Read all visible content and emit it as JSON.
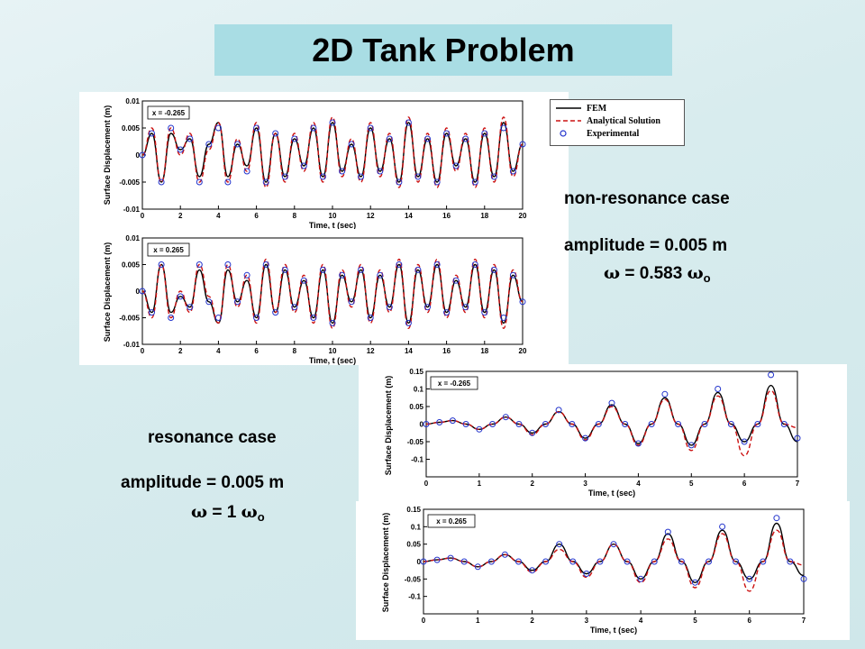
{
  "title": "2D Tank Problem",
  "legend": [
    {
      "label": "FEM",
      "style": "solid",
      "color": "#000000"
    },
    {
      "label": "Analytical Solution",
      "style": "dashed",
      "color": "#cc1111"
    },
    {
      "label": "Experimental",
      "style": "circle",
      "color": "#2233cc"
    }
  ],
  "non_resonance": {
    "case_label": "non-resonance case",
    "amplitude_label": "amplitude = 0.005 m",
    "omega_symbol": "ω",
    "omega_value": " = 0.583 ",
    "omega_ref": "ω",
    "omega_sub": "o"
  },
  "resonance": {
    "case_label": "resonance case",
    "amplitude_label": "amplitude = 0.005 m",
    "omega_symbol": "ω",
    "omega_value": " = 1 ",
    "omega_ref": "ω",
    "omega_sub": "o"
  },
  "chart_data": [
    {
      "type": "line",
      "case": "non-resonance",
      "annotation": "x = -0.265",
      "xlabel": "Time, t (sec)",
      "ylabel": "Surface Displacement (m)",
      "xlim": [
        0,
        20
      ],
      "ylim": [
        -0.01,
        0.01
      ],
      "xticks": [
        0,
        2,
        4,
        6,
        8,
        10,
        12,
        14,
        16,
        18,
        20
      ],
      "yticks": [
        -0.01,
        -0.005,
        0,
        0.005,
        0.01
      ],
      "ytick_labels": [
        "-0.01",
        "-0.005",
        "0",
        "0.005",
        "0.01"
      ],
      "omega_ratio": 0.583,
      "amplitude": 0.005,
      "series": [
        {
          "name": "FEM",
          "x": [
            0,
            0.5,
            1,
            1.5,
            2,
            2.5,
            3,
            3.5,
            4,
            4.5,
            5,
            5.5,
            6,
            6.5,
            7,
            7.5,
            8,
            8.5,
            9,
            9.5,
            10,
            10.5,
            11,
            11.5,
            12,
            12.5,
            13,
            13.5,
            14,
            14.5,
            15,
            15.5,
            16,
            16.5,
            17,
            17.5,
            18,
            18.5,
            19,
            19.5,
            20
          ],
          "y": [
            0,
            0.004,
            -0.005,
            0.004,
            0.001,
            0.003,
            -0.004,
            0.002,
            0.006,
            -0.004,
            0.002,
            -0.002,
            0.005,
            -0.005,
            0.004,
            -0.004,
            0.003,
            -0.002,
            0.005,
            -0.004,
            0.006,
            -0.003,
            0.002,
            -0.004,
            0.005,
            -0.003,
            0.003,
            -0.005,
            0.006,
            -0.004,
            0.003,
            -0.005,
            0.004,
            -0.002,
            0.003,
            -0.005,
            0.004,
            -0.004,
            0.006,
            -0.003,
            0.002
          ]
        },
        {
          "name": "Analytical Solution",
          "x": [
            0,
            0.5,
            1,
            1.5,
            2,
            2.5,
            3,
            3.5,
            4,
            4.5,
            5,
            5.5,
            6,
            6.5,
            7,
            7.5,
            8,
            8.5,
            9,
            9.5,
            10,
            10.5,
            11,
            11.5,
            12,
            12.5,
            13,
            13.5,
            14,
            14.5,
            15,
            15.5,
            16,
            16.5,
            17,
            17.5,
            18,
            18.5,
            19,
            19.5,
            20
          ],
          "y": [
            0,
            0.005,
            -0.005,
            0.005,
            0,
            0.004,
            -0.005,
            0.001,
            0.006,
            -0.005,
            0.003,
            -0.003,
            0.006,
            -0.006,
            0.004,
            -0.005,
            0.004,
            -0.003,
            0.006,
            -0.005,
            0.007,
            -0.004,
            0.003,
            -0.005,
            0.006,
            -0.004,
            0.004,
            -0.006,
            0.007,
            -0.005,
            0.004,
            -0.006,
            0.005,
            -0.003,
            0.004,
            -0.006,
            0.005,
            -0.005,
            0.007,
            -0.004,
            0.002
          ]
        },
        {
          "name": "Experimental",
          "x": [
            0,
            0.5,
            1,
            1.5,
            2,
            2.5,
            3,
            3.5,
            4,
            4.5,
            5,
            5.5,
            6,
            6.5,
            7,
            7.5,
            8,
            8.5,
            9,
            9.5,
            10,
            10.5,
            11,
            11.5,
            12,
            12.5,
            13,
            13.5,
            14,
            14.5,
            15,
            15.5,
            16,
            16.5,
            17,
            17.5,
            18,
            18.5,
            19,
            19.5,
            20
          ],
          "y": [
            0,
            0.004,
            -0.005,
            0.005,
            0.001,
            0.003,
            -0.005,
            0.002,
            0.005,
            -0.005,
            0.002,
            -0.003,
            0.005,
            -0.005,
            0.004,
            -0.004,
            0.003,
            -0.002,
            0.005,
            -0.004,
            0.006,
            -0.003,
            0.002,
            -0.004,
            0.005,
            -0.003,
            0.003,
            -0.005,
            0.006,
            -0.004,
            0.003,
            -0.005,
            0.004,
            -0.002,
            0.003,
            -0.005,
            0.004,
            -0.004,
            0.005,
            -0.003,
            0.002
          ]
        }
      ]
    },
    {
      "type": "line",
      "case": "non-resonance",
      "annotation": "x = 0.265",
      "xlabel": "Time, t (sec)",
      "ylabel": "Surface Displacement (m)",
      "xlim": [
        0,
        20
      ],
      "ylim": [
        -0.01,
        0.01
      ],
      "xticks": [
        0,
        2,
        4,
        6,
        8,
        10,
        12,
        14,
        16,
        18,
        20
      ],
      "yticks": [
        -0.01,
        -0.005,
        0,
        0.005,
        0.01
      ],
      "ytick_labels": [
        "-0.01",
        "-0.005",
        "0",
        "0.005",
        "0.01"
      ],
      "omega_ratio": 0.583,
      "amplitude": 0.005,
      "series": [
        {
          "name": "FEM",
          "x": [
            0,
            0.5,
            1,
            1.5,
            2,
            2.5,
            3,
            3.5,
            4,
            4.5,
            5,
            5.5,
            6,
            6.5,
            7,
            7.5,
            8,
            8.5,
            9,
            9.5,
            10,
            10.5,
            11,
            11.5,
            12,
            12.5,
            13,
            13.5,
            14,
            14.5,
            15,
            15.5,
            16,
            16.5,
            17,
            17.5,
            18,
            18.5,
            19,
            19.5,
            20
          ],
          "y": [
            0,
            -0.004,
            0.005,
            -0.004,
            -0.001,
            -0.003,
            0.004,
            -0.002,
            -0.006,
            0.004,
            -0.002,
            0.002,
            -0.005,
            0.005,
            -0.004,
            0.004,
            -0.003,
            0.002,
            -0.005,
            0.004,
            -0.006,
            0.003,
            -0.002,
            0.004,
            -0.005,
            0.003,
            -0.003,
            0.005,
            -0.006,
            0.004,
            -0.003,
            0.005,
            -0.004,
            0.002,
            -0.003,
            0.005,
            -0.004,
            0.004,
            -0.006,
            0.003,
            -0.002
          ]
        },
        {
          "name": "Analytical Solution",
          "x": [
            0,
            0.5,
            1,
            1.5,
            2,
            2.5,
            3,
            3.5,
            4,
            4.5,
            5,
            5.5,
            6,
            6.5,
            7,
            7.5,
            8,
            8.5,
            9,
            9.5,
            10,
            10.5,
            11,
            11.5,
            12,
            12.5,
            13,
            13.5,
            14,
            14.5,
            15,
            15.5,
            16,
            16.5,
            17,
            17.5,
            18,
            18.5,
            19,
            19.5,
            20
          ],
          "y": [
            0,
            -0.005,
            0.005,
            -0.005,
            0,
            -0.004,
            0.005,
            -0.001,
            -0.006,
            0.005,
            -0.003,
            0.003,
            -0.006,
            0.006,
            -0.004,
            0.005,
            -0.004,
            0.003,
            -0.006,
            0.005,
            -0.007,
            0.004,
            -0.003,
            0.005,
            -0.006,
            0.004,
            -0.004,
            0.006,
            -0.007,
            0.005,
            -0.004,
            0.006,
            -0.005,
            0.003,
            -0.004,
            0.006,
            -0.005,
            0.005,
            -0.007,
            0.004,
            -0.002
          ]
        },
        {
          "name": "Experimental",
          "x": [
            0,
            0.5,
            1,
            1.5,
            2,
            2.5,
            3,
            3.5,
            4,
            4.5,
            5,
            5.5,
            6,
            6.5,
            7,
            7.5,
            8,
            8.5,
            9,
            9.5,
            10,
            10.5,
            11,
            11.5,
            12,
            12.5,
            13,
            13.5,
            14,
            14.5,
            15,
            15.5,
            16,
            16.5,
            17,
            17.5,
            18,
            18.5,
            19,
            19.5,
            20
          ],
          "y": [
            0,
            -0.004,
            0.005,
            -0.005,
            -0.001,
            -0.003,
            0.005,
            -0.002,
            -0.005,
            0.005,
            -0.002,
            0.003,
            -0.005,
            0.005,
            -0.004,
            0.004,
            -0.003,
            0.002,
            -0.005,
            0.004,
            -0.006,
            0.003,
            -0.002,
            0.004,
            -0.005,
            0.003,
            -0.003,
            0.005,
            -0.006,
            0.004,
            -0.003,
            0.005,
            -0.004,
            0.002,
            -0.003,
            0.005,
            -0.004,
            0.004,
            -0.005,
            0.003,
            -0.002
          ]
        }
      ]
    },
    {
      "type": "line",
      "case": "resonance",
      "annotation": "x = -0.265",
      "xlabel": "Time, t (sec)",
      "ylabel": "Surface Displacement (m)",
      "xlim": [
        0,
        7
      ],
      "ylim": [
        -0.15,
        0.15
      ],
      "xticks": [
        0,
        1,
        2,
        3,
        4,
        5,
        6,
        7
      ],
      "yticks": [
        -0.1,
        -0.05,
        0,
        0.05,
        0.1,
        0.15
      ],
      "ytick_labels": [
        "-0.1",
        "-0.05",
        "0",
        "0.05",
        "0.1",
        "0.15"
      ],
      "omega_ratio": 1,
      "amplitude": 0.005,
      "series": [
        {
          "name": "FEM",
          "x": [
            0,
            0.25,
            0.5,
            0.75,
            1,
            1.25,
            1.5,
            1.75,
            2,
            2.25,
            2.5,
            2.75,
            3,
            3.25,
            3.5,
            3.75,
            4,
            4.25,
            4.5,
            4.75,
            5,
            5.25,
            5.5,
            5.75,
            6,
            6.25,
            6.5,
            6.75,
            7
          ],
          "y": [
            0,
            0.005,
            0.01,
            0,
            -0.015,
            0,
            0.02,
            0,
            -0.025,
            0,
            0.035,
            0,
            -0.04,
            0,
            0.055,
            0,
            -0.055,
            0,
            0.075,
            0,
            -0.06,
            0,
            0.09,
            0,
            -0.05,
            0,
            0.11,
            0,
            -0.05
          ]
        },
        {
          "name": "Analytical Solution",
          "x": [
            0,
            0.25,
            0.5,
            0.75,
            1,
            1.25,
            1.5,
            1.75,
            2,
            2.25,
            2.5,
            2.75,
            3,
            3.25,
            3.5,
            3.75,
            4,
            4.25,
            4.5,
            4.75,
            5,
            5.25,
            5.5,
            5.75,
            6,
            6.25,
            6.5,
            6.75,
            7
          ],
          "y": [
            0,
            0.005,
            0.01,
            0,
            -0.015,
            0,
            0.02,
            0,
            -0.03,
            0,
            0.035,
            0,
            -0.045,
            0,
            0.05,
            0,
            -0.06,
            0,
            0.07,
            0,
            -0.075,
            0,
            0.08,
            0,
            -0.09,
            0,
            0.095,
            0,
            -0.01
          ]
        },
        {
          "name": "Experimental",
          "x": [
            0,
            0.25,
            0.5,
            0.75,
            1,
            1.25,
            1.5,
            1.75,
            2,
            2.25,
            2.5,
            2.75,
            3,
            3.25,
            3.5,
            3.75,
            4,
            4.25,
            4.5,
            4.75,
            5,
            5.25,
            5.5,
            5.75,
            6,
            6.25,
            6.5,
            6.75,
            7
          ],
          "y": [
            0,
            0.005,
            0.01,
            0,
            -0.015,
            0,
            0.02,
            0,
            -0.025,
            0,
            0.04,
            0,
            -0.04,
            0,
            0.06,
            0,
            -0.055,
            0,
            0.085,
            0,
            -0.06,
            0,
            0.1,
            0,
            -0.05,
            0,
            0.14,
            0,
            -0.04
          ]
        }
      ]
    },
    {
      "type": "line",
      "case": "resonance",
      "annotation": "x = 0.265",
      "xlabel": "Time, t (sec)",
      "ylabel": "Surface Displacement (m)",
      "xlim": [
        0,
        7
      ],
      "ylim": [
        -0.15,
        0.15
      ],
      "xticks": [
        0,
        1,
        2,
        3,
        4,
        5,
        6,
        7
      ],
      "yticks": [
        -0.1,
        -0.05,
        0,
        0.05,
        0.1,
        0.15
      ],
      "ytick_labels": [
        "-0.1",
        "-0.05",
        "0",
        "0.05",
        "0.1",
        "0.15"
      ],
      "omega_ratio": 1,
      "amplitude": 0.005,
      "series": [
        {
          "name": "FEM",
          "x": [
            0,
            0.25,
            0.5,
            0.75,
            1,
            1.25,
            1.5,
            1.75,
            2,
            2.25,
            2.5,
            2.75,
            3,
            3.25,
            3.5,
            3.75,
            4,
            4.25,
            4.5,
            4.75,
            5,
            5.25,
            5.5,
            5.75,
            6,
            6.25,
            6.5,
            6.75,
            7
          ],
          "y": [
            0,
            0.005,
            0.01,
            0,
            -0.015,
            0,
            0.02,
            0,
            -0.025,
            0,
            0.05,
            0,
            -0.035,
            0,
            0.05,
            0,
            -0.05,
            0,
            0.08,
            0,
            -0.06,
            0,
            0.09,
            0,
            -0.05,
            0,
            0.11,
            0,
            -0.04
          ]
        },
        {
          "name": "Analytical Solution",
          "x": [
            0,
            0.25,
            0.5,
            0.75,
            1,
            1.25,
            1.5,
            1.75,
            2,
            2.25,
            2.5,
            2.75,
            3,
            3.25,
            3.5,
            3.75,
            4,
            4.25,
            4.5,
            4.75,
            5,
            5.25,
            5.5,
            5.75,
            6,
            6.25,
            6.5,
            6.75,
            7
          ],
          "y": [
            0,
            0.005,
            0.01,
            0,
            -0.015,
            0,
            0.02,
            0,
            -0.03,
            0,
            0.035,
            0,
            -0.045,
            0,
            0.05,
            0,
            -0.06,
            0,
            0.065,
            0,
            -0.075,
            0,
            0.08,
            0,
            -0.085,
            0,
            0.09,
            0,
            -0.01
          ]
        },
        {
          "name": "Experimental",
          "x": [
            0,
            0.25,
            0.5,
            0.75,
            1,
            1.25,
            1.5,
            1.75,
            2,
            2.25,
            2.5,
            2.75,
            3,
            3.25,
            3.5,
            3.75,
            4,
            4.25,
            4.5,
            4.75,
            5,
            5.25,
            5.5,
            5.75,
            6,
            6.25,
            6.5,
            6.75,
            7
          ],
          "y": [
            0,
            0.005,
            0.01,
            0,
            -0.015,
            0,
            0.02,
            0,
            -0.025,
            0,
            0.05,
            0,
            -0.035,
            0,
            0.05,
            0,
            -0.05,
            0,
            0.085,
            0,
            -0.06,
            0,
            0.1,
            0,
            -0.05,
            0,
            0.125,
            0,
            -0.05
          ]
        }
      ]
    }
  ]
}
